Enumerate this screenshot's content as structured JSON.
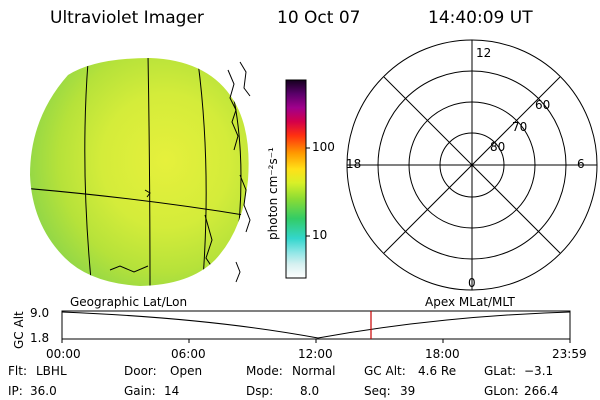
{
  "header": {
    "instrument": "Ultraviolet Imager",
    "date": "10 Oct 07",
    "time": "14:40:09 UT"
  },
  "colorbar": {
    "label": "photon cm⁻²s⁻¹",
    "ticks": [
      "100",
      "10"
    ]
  },
  "polar_plot": {
    "mlt_labels": [
      "12",
      "18",
      "6",
      "0"
    ],
    "lat_labels": [
      "60",
      "70",
      "80"
    ]
  },
  "timeline": {
    "left_label": "Geographic Lat/Lon",
    "right_label": "Apex MLat/MLT",
    "y_axis_label": "GC Alt",
    "y_ticks": [
      "9.0",
      "1.8"
    ],
    "x_ticks": [
      "00:00",
      "06:00",
      "12:00",
      "18:00",
      "23:59"
    ],
    "current_time_marker": "14:40",
    "marker_color": "#c80000"
  },
  "status": {
    "filter_label": "Flt:",
    "filter_value": "LBHL",
    "door_label": "Door:",
    "door_value": "Open",
    "mode_label": "Mode:",
    "mode_value": "Normal",
    "gcalt_label": "GC Alt:",
    "gcalt_value": "4.6 Re",
    "glat_label": "GLat:",
    "glat_value": "−3.1",
    "ip_label": "IP:",
    "ip_value": "36.0",
    "gain_label": "Gain:",
    "gain_value": "14",
    "dsp_label": "Dsp:",
    "dsp_value": "8.0",
    "seq_label": "Seq:",
    "seq_value": "39",
    "glon_label": "GLon:",
    "glon_value": "266.4"
  }
}
